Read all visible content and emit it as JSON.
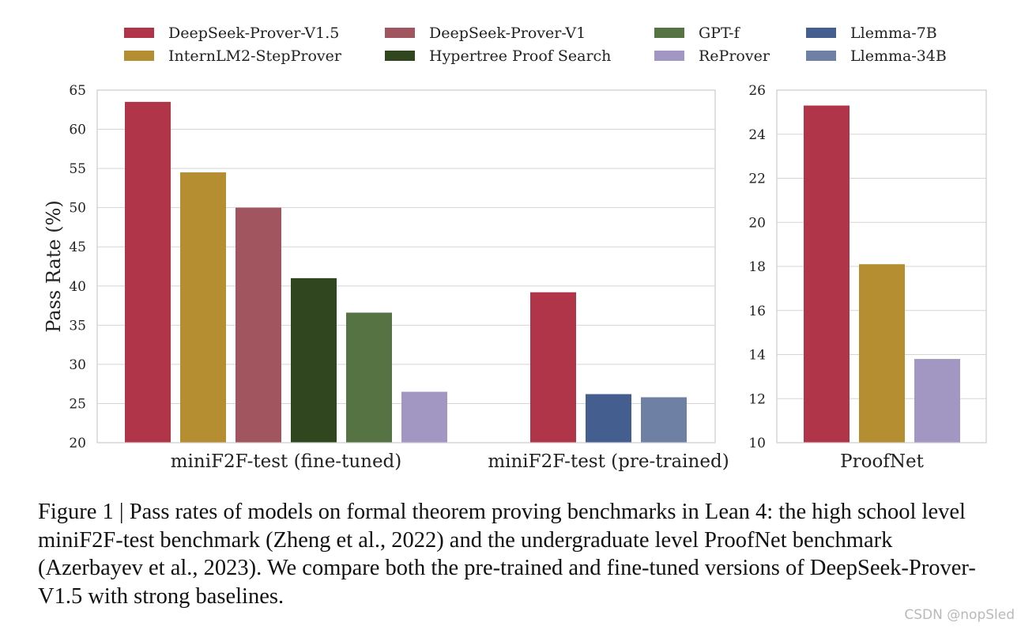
{
  "chart_data": [
    {
      "type": "bar",
      "title": "",
      "xlabel": "",
      "ylabel": "Pass Rate (%)",
      "ylim": [
        20,
        65
      ],
      "yticks": [
        20,
        25,
        30,
        35,
        40,
        45,
        50,
        55,
        60,
        65
      ],
      "grid": true,
      "groups": [
        {
          "label": "miniF2F-test (fine-tuned)",
          "bars": [
            {
              "series": "DeepSeek-Prover-V1.5",
              "value": 63.5
            },
            {
              "series": "InternLM2-StepProver",
              "value": 54.5
            },
            {
              "series": "DeepSeek-Prover-V1",
              "value": 50.0
            },
            {
              "series": "Hypertree Proof Search",
              "value": 41.0
            },
            {
              "series": "GPT-f",
              "value": 36.6
            },
            {
              "series": "ReProver",
              "value": 26.5
            }
          ]
        },
        {
          "label": "miniF2F-test (pre-trained)",
          "bars": [
            {
              "series": "DeepSeek-Prover-V1.5",
              "value": 39.2
            },
            {
              "series": "Llemma-7B",
              "value": 26.2
            },
            {
              "series": "Llemma-34B",
              "value": 25.8
            }
          ]
        }
      ]
    },
    {
      "type": "bar",
      "title": "",
      "xlabel": "",
      "ylabel": "",
      "ylim": [
        10,
        26
      ],
      "yticks": [
        10,
        12,
        14,
        16,
        18,
        20,
        22,
        24,
        26
      ],
      "grid": true,
      "groups": [
        {
          "label": "ProofNet",
          "bars": [
            {
              "series": "DeepSeek-Prover-V1.5",
              "value": 25.3
            },
            {
              "series": "InternLM2-StepProver",
              "value": 18.1
            },
            {
              "series": "ReProver",
              "value": 13.8
            }
          ]
        }
      ]
    }
  ],
  "legend": {
    "placement": "top",
    "entries": [
      {
        "name": "DeepSeek-Prover-V1.5",
        "color": "#b03548"
      },
      {
        "name": "InternLM2-StepProver",
        "color": "#b48e30"
      },
      {
        "name": "DeepSeek-Prover-V1",
        "color": "#a1565f"
      },
      {
        "name": "Hypertree Proof Search",
        "color": "#30461e"
      },
      {
        "name": "GPT-f",
        "color": "#567443"
      },
      {
        "name": "ReProver",
        "color": "#a296c2"
      },
      {
        "name": "Llemma-7B",
        "color": "#445f8f"
      },
      {
        "name": "Llemma-34B",
        "color": "#6f80a5"
      }
    ]
  },
  "caption": "Figure 1 | Pass rates of models on formal theorem proving benchmarks in Lean 4: the high school level miniF2F-test benchmark (Zheng et al., 2022) and the undergraduate level ProofNet benchmark (Azerbayev et al., 2023). We compare both the pre-trained and fine-tuned versions of DeepSeek-Prover-V1.5 with strong baselines.",
  "watermark": "CSDN @nopSled"
}
